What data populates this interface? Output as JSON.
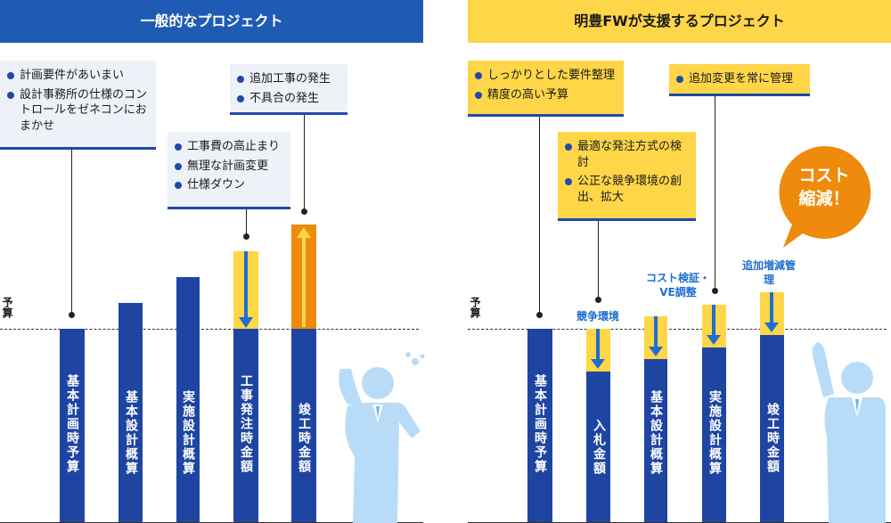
{
  "left": {
    "header": "一般的なプロジェクト",
    "budget_label": "予算",
    "note1": [
      "計画要件があいまい",
      "設計事務所の仕様のコントロールをゼネコンにおまかせ"
    ],
    "note2": [
      "工事費の高止まり",
      "無理な計画変更",
      "仕様ダウン"
    ],
    "note3": [
      "追加工事の発生",
      "不具合の発生"
    ],
    "bars": [
      "基本計画時予算",
      "基本設計概算",
      "実施設計概算",
      "工事発注時金額",
      "竣工時金額"
    ]
  },
  "right": {
    "header": "明豊FWが支援するプロジェクト",
    "budget_label": "予算",
    "note1": [
      "しっかりとした要件整理",
      "精度の高い予算"
    ],
    "note2": [
      "最適な発注方式の検討",
      "公正な競争環境の創出、拡大"
    ],
    "note3": [
      "追加変更を常に管理"
    ],
    "bubble": [
      "コスト",
      "縮減！"
    ],
    "callouts": [
      "競争環境",
      "コスト検証・VE調整",
      "追加増減管理"
    ],
    "bars": [
      "基本計画時予算",
      "入札金額",
      "基本設計概算",
      "実施設計概算",
      "竣工時金額"
    ]
  },
  "colors": {
    "blue": "#1f45a3",
    "accent_blue": "#1f6ed0",
    "yellow": "#ffd648",
    "orange": "#ee8a0c",
    "header_blue": "#1f5bb5",
    "header_yellow": "#ffd648"
  }
}
